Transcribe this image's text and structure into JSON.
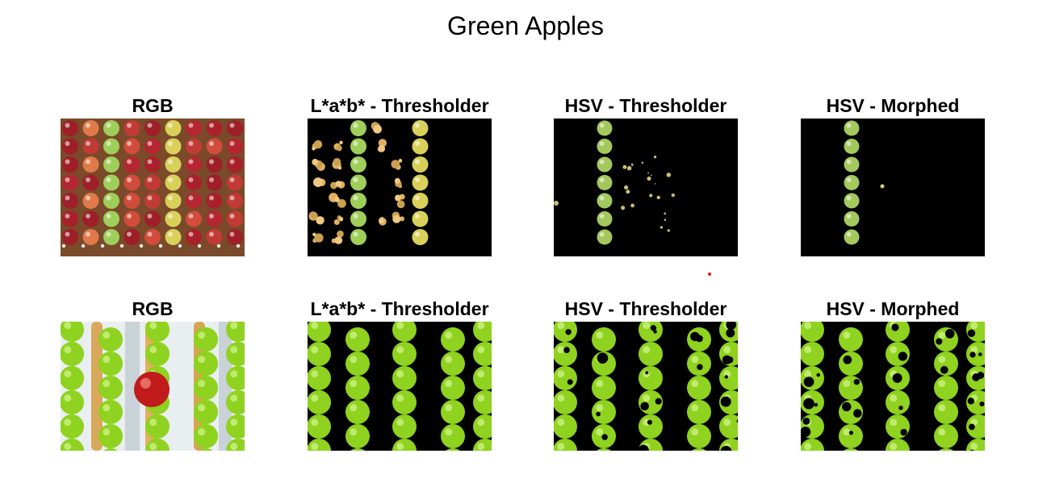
{
  "figure": {
    "title": "Green Apples",
    "rows": [
      {
        "panels": [
          {
            "title": "RGB",
            "kind": "rgb-red"
          },
          {
            "title": "L*a*b* - Thresholder",
            "kind": "lab-red"
          },
          {
            "title": "HSV - Thresholder",
            "kind": "hsv-red"
          },
          {
            "title": "HSV - Morphed",
            "kind": "morph-red"
          }
        ]
      },
      {
        "panels": [
          {
            "title": "RGB",
            "kind": "rgb-green"
          },
          {
            "title": "L*a*b* - Thresholder",
            "kind": "lab-green"
          },
          {
            "title": "HSV - Thresholder",
            "kind": "hsv-green"
          },
          {
            "title": "HSV - Morphed",
            "kind": "morph-green"
          }
        ]
      }
    ]
  },
  "colors": {
    "background": "#ffffff",
    "mask": "#000000",
    "red_apple": "#a8202a",
    "green_apple": "#8fd21f",
    "yellow_apple": "#d9d05a",
    "wood": "#7a4a2a",
    "stray_dot": "#e01b1b"
  }
}
